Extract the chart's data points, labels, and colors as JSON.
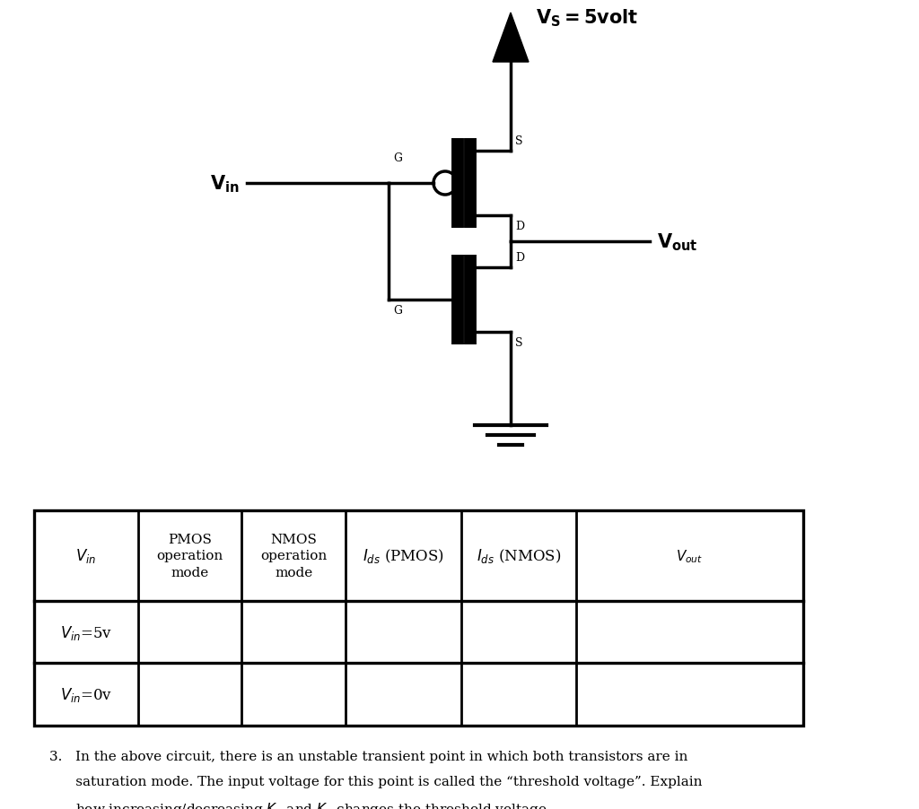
{
  "bg_color": "#ffffff",
  "line_color": "#000000",
  "lw": 2.5,
  "supply_label": "$\\mathbf{V_S=5volt}$",
  "vin_label": "$\\mathbf{V_{in}}$",
  "vout_label": "$\\mathbf{V_{out}}$",
  "table_col_labels": [
    "$V_{in}$",
    "PMOS\noperation\nmode",
    "NMOS\noperation\nmode",
    "$I_{ds}$ (PMOS)",
    "$I_{ds}$ (NMOS)",
    "$V_{out}$"
  ],
  "table_row1": "$V_{in}$=5v",
  "table_row2": "$V_{in}$=0v",
  "footnote_line1": "3.   In the above circuit, there is an unstable transient point in which both transistors are in",
  "footnote_line2": "      saturation mode. The input voltage for this point is called the “threshold voltage”. Explain",
  "footnote_line3": "      how increasing/decreasing $K_n$ and $K_p$ changes the threshold voltage."
}
